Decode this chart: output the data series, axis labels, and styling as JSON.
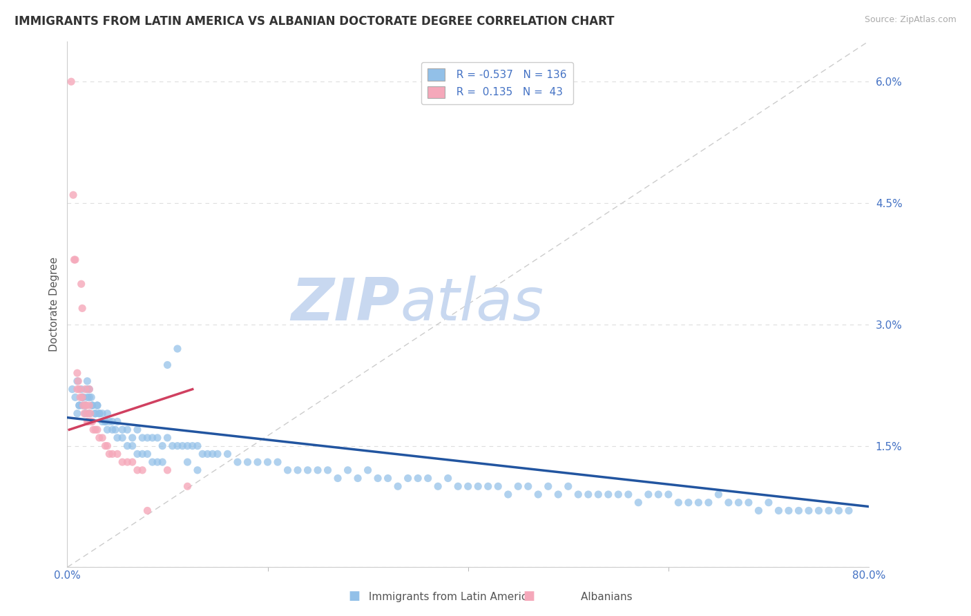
{
  "title": "IMMIGRANTS FROM LATIN AMERICA VS ALBANIAN DOCTORATE DEGREE CORRELATION CHART",
  "source": "Source: ZipAtlas.com",
  "ylabel": "Doctorate Degree",
  "x_min": 0.0,
  "x_max": 0.8,
  "y_min": 0.0,
  "y_max": 0.065,
  "y_ticks": [
    0.0,
    0.015,
    0.03,
    0.045,
    0.06
  ],
  "y_tick_labels": [
    "",
    "1.5%",
    "3.0%",
    "4.5%",
    "6.0%"
  ],
  "legend_r1": "R = -0.537",
  "legend_n1": "N = 136",
  "legend_r2": "R =  0.135",
  "legend_n2": "N =  43",
  "blue_color": "#92c0e8",
  "pink_color": "#f5a8ba",
  "trend_blue": "#2255a0",
  "trend_pink": "#d04060",
  "watermark_zip": "#c8d8f0",
  "watermark_atlas": "#c8d8f0",
  "blue_scatter_x": [
    0.005,
    0.008,
    0.01,
    0.012,
    0.014,
    0.016,
    0.018,
    0.02,
    0.022,
    0.024,
    0.01,
    0.012,
    0.015,
    0.018,
    0.02,
    0.022,
    0.025,
    0.028,
    0.03,
    0.032,
    0.035,
    0.038,
    0.04,
    0.042,
    0.045,
    0.048,
    0.05,
    0.055,
    0.06,
    0.065,
    0.07,
    0.075,
    0.08,
    0.085,
    0.09,
    0.095,
    0.1,
    0.105,
    0.11,
    0.115,
    0.12,
    0.125,
    0.13,
    0.135,
    0.14,
    0.145,
    0.15,
    0.16,
    0.17,
    0.18,
    0.19,
    0.2,
    0.21,
    0.22,
    0.23,
    0.24,
    0.25,
    0.26,
    0.27,
    0.28,
    0.29,
    0.3,
    0.31,
    0.32,
    0.33,
    0.34,
    0.35,
    0.36,
    0.37,
    0.38,
    0.39,
    0.4,
    0.41,
    0.42,
    0.43,
    0.44,
    0.45,
    0.46,
    0.47,
    0.48,
    0.49,
    0.5,
    0.51,
    0.52,
    0.53,
    0.54,
    0.55,
    0.56,
    0.57,
    0.58,
    0.59,
    0.6,
    0.61,
    0.62,
    0.63,
    0.64,
    0.65,
    0.66,
    0.67,
    0.68,
    0.69,
    0.7,
    0.71,
    0.72,
    0.73,
    0.74,
    0.75,
    0.76,
    0.77,
    0.78,
    0.015,
    0.018,
    0.02,
    0.022,
    0.025,
    0.028,
    0.03,
    0.032,
    0.035,
    0.038,
    0.04,
    0.045,
    0.05,
    0.055,
    0.06,
    0.065,
    0.07,
    0.075,
    0.08,
    0.085,
    0.09,
    0.095,
    0.1,
    0.11,
    0.12,
    0.13
  ],
  "blue_scatter_y": [
    0.022,
    0.021,
    0.023,
    0.02,
    0.022,
    0.021,
    0.02,
    0.023,
    0.022,
    0.021,
    0.019,
    0.02,
    0.021,
    0.02,
    0.021,
    0.019,
    0.02,
    0.019,
    0.02,
    0.019,
    0.019,
    0.018,
    0.019,
    0.018,
    0.018,
    0.017,
    0.018,
    0.017,
    0.017,
    0.016,
    0.017,
    0.016,
    0.016,
    0.016,
    0.016,
    0.015,
    0.016,
    0.015,
    0.015,
    0.015,
    0.015,
    0.015,
    0.015,
    0.014,
    0.014,
    0.014,
    0.014,
    0.014,
    0.013,
    0.013,
    0.013,
    0.013,
    0.013,
    0.012,
    0.012,
    0.012,
    0.012,
    0.012,
    0.011,
    0.012,
    0.011,
    0.012,
    0.011,
    0.011,
    0.01,
    0.011,
    0.011,
    0.011,
    0.01,
    0.011,
    0.01,
    0.01,
    0.01,
    0.01,
    0.01,
    0.009,
    0.01,
    0.01,
    0.009,
    0.01,
    0.009,
    0.01,
    0.009,
    0.009,
    0.009,
    0.009,
    0.009,
    0.009,
    0.008,
    0.009,
    0.009,
    0.009,
    0.008,
    0.008,
    0.008,
    0.008,
    0.009,
    0.008,
    0.008,
    0.008,
    0.007,
    0.008,
    0.007,
    0.007,
    0.007,
    0.007,
    0.007,
    0.007,
    0.007,
    0.007,
    0.02,
    0.019,
    0.022,
    0.021,
    0.02,
    0.019,
    0.02,
    0.019,
    0.018,
    0.018,
    0.017,
    0.017,
    0.016,
    0.016,
    0.015,
    0.015,
    0.014,
    0.014,
    0.014,
    0.013,
    0.013,
    0.013,
    0.025,
    0.027,
    0.013,
    0.012
  ],
  "pink_scatter_x": [
    0.004,
    0.006,
    0.007,
    0.008,
    0.01,
    0.01,
    0.011,
    0.012,
    0.013,
    0.014,
    0.015,
    0.015,
    0.016,
    0.017,
    0.018,
    0.018,
    0.019,
    0.02,
    0.02,
    0.021,
    0.022,
    0.022,
    0.023,
    0.024,
    0.025,
    0.026,
    0.028,
    0.03,
    0.032,
    0.035,
    0.038,
    0.04,
    0.042,
    0.045,
    0.05,
    0.055,
    0.06,
    0.065,
    0.07,
    0.075,
    0.08,
    0.1,
    0.12
  ],
  "pink_scatter_y": [
    0.06,
    0.046,
    0.038,
    0.038,
    0.022,
    0.024,
    0.023,
    0.022,
    0.021,
    0.035,
    0.021,
    0.032,
    0.02,
    0.019,
    0.022,
    0.02,
    0.02,
    0.019,
    0.018,
    0.018,
    0.022,
    0.02,
    0.019,
    0.018,
    0.018,
    0.017,
    0.017,
    0.017,
    0.016,
    0.016,
    0.015,
    0.015,
    0.014,
    0.014,
    0.014,
    0.013,
    0.013,
    0.013,
    0.012,
    0.012,
    0.007,
    0.012,
    0.01
  ],
  "blue_trend_x": [
    0.0,
    0.8
  ],
  "blue_trend_y": [
    0.0185,
    0.0075
  ],
  "pink_trend_x": [
    0.002,
    0.125
  ],
  "pink_trend_y": [
    0.017,
    0.022
  ],
  "ref_line_x": [
    0.0,
    0.8
  ],
  "ref_line_y": [
    0.0,
    0.065
  ],
  "background_color": "#ffffff",
  "grid_color": "#dddddd",
  "axis_label_color": "#4472c4",
  "title_color": "#333333"
}
